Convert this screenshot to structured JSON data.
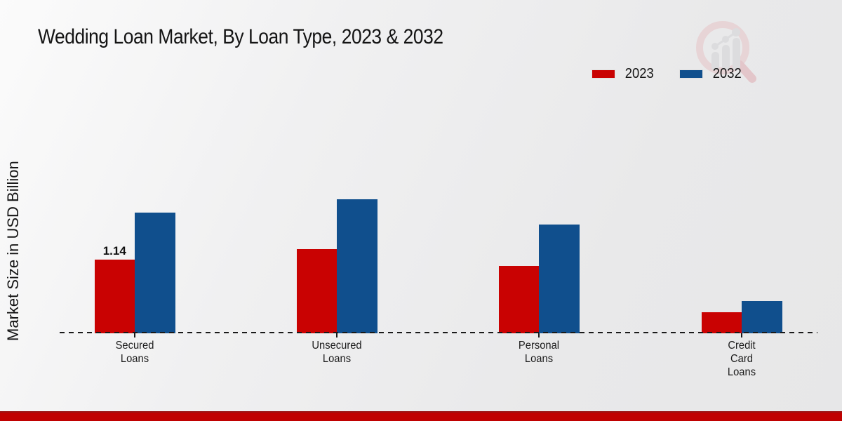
{
  "page": {
    "title": "Wedding Loan Market, By Loan Type, 2023 & 2032",
    "ylabel": "Market Size in USD Billion"
  },
  "legend": {
    "items": [
      {
        "label": "2023",
        "color": "#c90202"
      },
      {
        "label": "2032",
        "color": "#104f8d"
      }
    ]
  },
  "colors": {
    "series_2023": "#c90202",
    "series_2032": "#104f8d",
    "footer_strip": "#c00101",
    "baseline": "#1a1a1a",
    "watermark_pink": "#e7c3c6",
    "watermark_gray": "#d2d2d5"
  },
  "chart_data": {
    "type": "bar",
    "title": "Wedding Loan Market, By Loan Type, 2023 & 2032",
    "ylabel": "Market Size in USD Billion",
    "xlabel": "",
    "categories": [
      "Secured Loans",
      "Unsecured Loans",
      "Personal Loans",
      "Credit Card Loans"
    ],
    "category_lines": [
      [
        "Secured",
        "Loans"
      ],
      [
        "Unsecured",
        "Loans"
      ],
      [
        "Personal",
        "Loans"
      ],
      [
        "Credit",
        "Card",
        "Loans"
      ]
    ],
    "series": [
      {
        "name": "2023",
        "color": "#c90202",
        "values": [
          1.14,
          1.3,
          1.04,
          0.33
        ]
      },
      {
        "name": "2032",
        "color": "#104f8d",
        "values": [
          1.87,
          2.08,
          1.68,
          0.5
        ]
      }
    ],
    "data_labels": [
      {
        "series_index": 0,
        "category_index": 0,
        "text": "1.14"
      }
    ],
    "ylim": [
      0,
      2.3
    ],
    "axis_visible": false,
    "gridlines": false,
    "baseline_style": "dashed",
    "legend_position": "top-right"
  },
  "watermark": {
    "name": "market-research-magnifier-logo"
  }
}
